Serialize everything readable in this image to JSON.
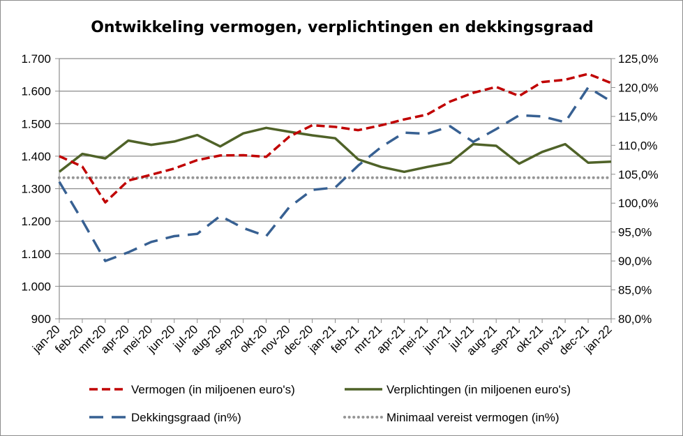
{
  "chart_data": {
    "type": "line",
    "title": "Ontwikkeling vermogen, verplichtingen en dekkingsgraad",
    "categories": [
      "jan-20",
      "feb-20",
      "mrt-20",
      "apr-20",
      "mei-20",
      "jun-20",
      "jul-20",
      "aug-20",
      "sep-20",
      "okt-20",
      "nov-20",
      "dec-20",
      "jan-21",
      "feb-21",
      "mrt-21",
      "apr-21",
      "mei-21",
      "jun-21",
      "jul-21",
      "aug-21",
      "sep-21",
      "okt-21",
      "nov-21",
      "dec-21",
      "jan-22"
    ],
    "y_left": {
      "ylim": [
        900,
        1700
      ],
      "ticks": [
        900,
        1000,
        1100,
        1200,
        1300,
        1400,
        1500,
        1600,
        1700
      ],
      "tick_labels": [
        "900",
        "1.000",
        "1.100",
        "1.200",
        "1.300",
        "1.400",
        "1.500",
        "1.600",
        "1.700"
      ]
    },
    "y_right": {
      "ylim": [
        80,
        125
      ],
      "ticks": [
        80,
        85,
        90,
        95,
        100,
        105,
        110,
        115,
        120,
        125
      ],
      "tick_labels": [
        "80,0%",
        "85,0%",
        "90,0%",
        "95,0%",
        "100,0%",
        "105,0%",
        "110,0%",
        "115,0%",
        "120,0%",
        "125,0%"
      ]
    },
    "grid": "horizontal",
    "legend_position": "bottom",
    "series": [
      {
        "name": "Vermogen (in miljoenen euro's)",
        "axis": "left",
        "color": "#c00000",
        "style": "dashed",
        "values": [
          1400,
          1368,
          1258,
          1325,
          1343,
          1362,
          1388,
          1402,
          1403,
          1398,
          1460,
          1495,
          1490,
          1480,
          1495,
          1513,
          1528,
          1568,
          1595,
          1613,
          1585,
          1628,
          1635,
          1653,
          1625
        ]
      },
      {
        "name": "Verplichtingen (in miljoenen euro's)",
        "axis": "left",
        "color": "#4f6228",
        "style": "solid",
        "values": [
          1352,
          1407,
          1393,
          1448,
          1435,
          1445,
          1465,
          1430,
          1470,
          1487,
          1475,
          1464,
          1455,
          1390,
          1367,
          1352,
          1367,
          1380,
          1437,
          1432,
          1377,
          1413,
          1437,
          1380,
          1383
        ]
      },
      {
        "name": "Dekkingsgraad (in%)",
        "axis": "right",
        "color": "#376092",
        "style": "longdash",
        "values": [
          103.7,
          97.0,
          90.0,
          91.5,
          93.3,
          94.3,
          94.7,
          97.8,
          95.7,
          94.3,
          99.3,
          102.3,
          102.7,
          106.5,
          109.7,
          112.2,
          112.0,
          113.3,
          110.6,
          112.8,
          115.2,
          115.0,
          114.0,
          120.0,
          117.6
        ]
      },
      {
        "name": "Minimaal vereist vermogen (in%)",
        "axis": "right",
        "color": "#969696",
        "style": "dotted",
        "values": [
          104.4,
          104.4,
          104.4,
          104.4,
          104.4,
          104.4,
          104.4,
          104.4,
          104.4,
          104.4,
          104.4,
          104.4,
          104.4,
          104.4,
          104.4,
          104.4,
          104.4,
          104.4,
          104.4,
          104.4,
          104.4,
          104.4,
          104.4,
          104.4,
          104.4
        ]
      }
    ]
  }
}
